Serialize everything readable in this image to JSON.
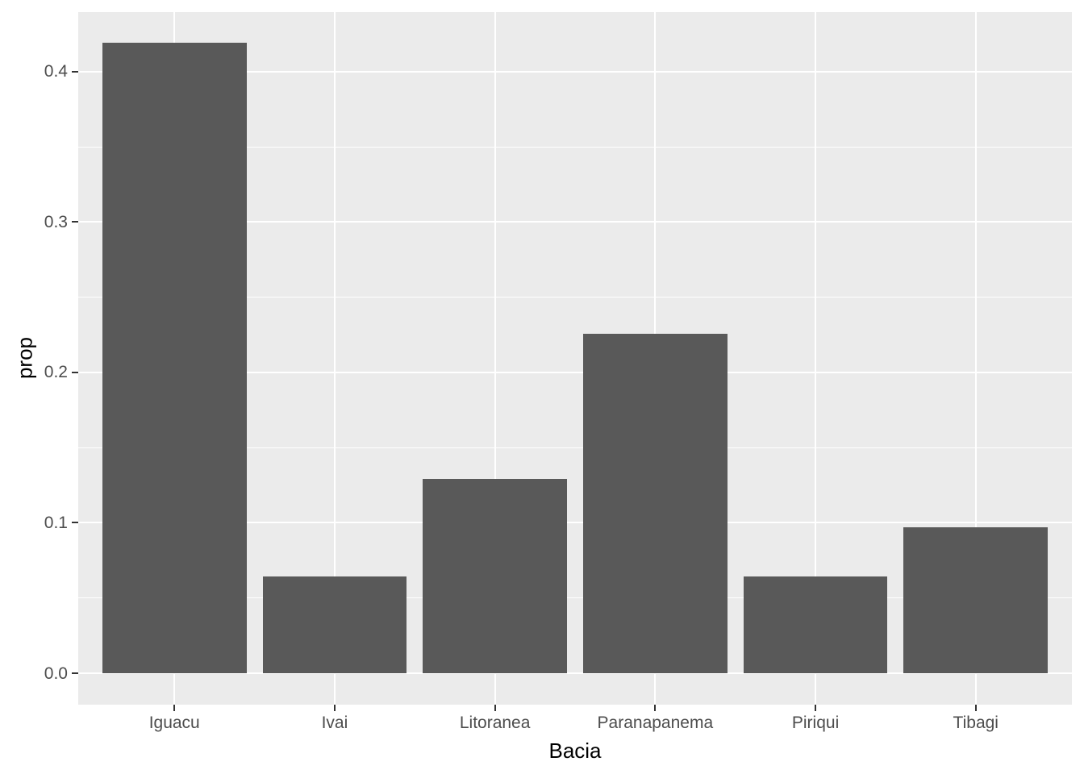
{
  "chart_data": {
    "type": "bar",
    "categories": [
      "Iguacu",
      "Ivai",
      "Litoranea",
      "Paranapanema",
      "Piriqui",
      "Tibagi"
    ],
    "values": [
      0.4194,
      0.0645,
      0.129,
      0.2258,
      0.0645,
      0.0968
    ],
    "title": "",
    "xlabel": "Bacia",
    "ylabel": "prop",
    "ylim": [
      -0.0209,
      0.4396
    ],
    "yticks": [
      0.0,
      0.1,
      0.2,
      0.3,
      0.4
    ],
    "ytick_labels": [
      "0.0",
      "0.1",
      "0.2",
      "0.3",
      "0.4"
    ],
    "grid": "on",
    "legend": "none",
    "bar_width_fraction": 0.9,
    "categorical_expand": 0.6,
    "colors": {
      "bar": "#595959",
      "panel_background": "#EBEBEB",
      "grid_major": "#FFFFFF",
      "grid_minor": "#FFFFFF",
      "tick_mark": "#333333",
      "tick_label": "#4D4D4D",
      "axis_title": "#000000",
      "figure_background": "#FFFFFF"
    }
  }
}
